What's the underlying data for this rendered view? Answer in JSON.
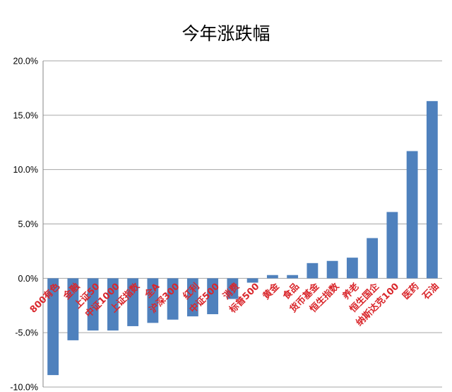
{
  "chart_data": {
    "type": "bar",
    "title": "今年涨跌幅",
    "xlabel": "",
    "ylabel": "",
    "ylim": [
      -10,
      20
    ],
    "yticks": [
      20,
      15,
      10,
      5,
      0,
      -5,
      -10
    ],
    "ytick_labels": [
      "20.0%",
      "15.0%",
      "10.0%",
      "5.0%",
      "0.0%",
      "-5.0%",
      "-10.0%"
    ],
    "grid": true,
    "legend": "none",
    "categories": [
      "800有色",
      "金融",
      "上证50",
      "中证1000",
      "上证指数",
      "全A",
      "沪深300",
      "红利",
      "中证500",
      "消费",
      "标普500",
      "黄金",
      "食品",
      "货币基金",
      "恒生指数",
      "养老",
      "恒生国企",
      "纳斯达克100",
      "医药",
      "石油"
    ],
    "series": [
      {
        "values": [
          -8.9,
          -5.7,
          -4.8,
          -4.8,
          -4.4,
          -4.1,
          -3.8,
          -3.5,
          -3.3,
          -1.9,
          -0.4,
          0.3,
          0.3,
          1.4,
          1.6,
          1.9,
          3.7,
          6.1,
          11.7,
          16.3
        ]
      }
    ],
    "colors": {
      "bar": "#4F81BD",
      "label": "#D9262B",
      "grid": "#A6A6A6"
    }
  }
}
